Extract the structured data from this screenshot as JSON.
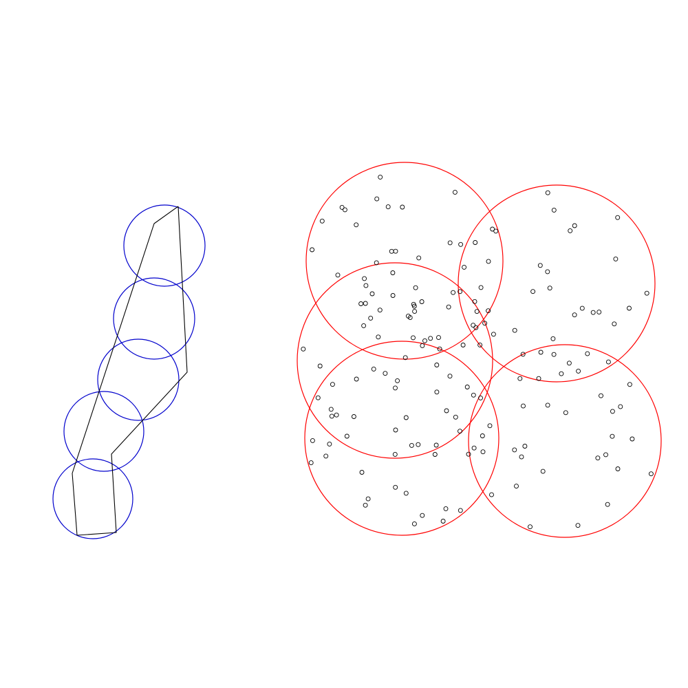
{
  "diagram": {
    "colors": {
      "left_circles": "#0000cc",
      "outline": "#000000",
      "right_circles": "#ff0000",
      "points": "#000000",
      "background": "#ffffff"
    },
    "left_cluster": {
      "circle_count": 5,
      "has_enclosing_polygon": true
    },
    "right_cluster": {
      "circle_count": 5,
      "shows_scattered_points": true
    }
  }
}
